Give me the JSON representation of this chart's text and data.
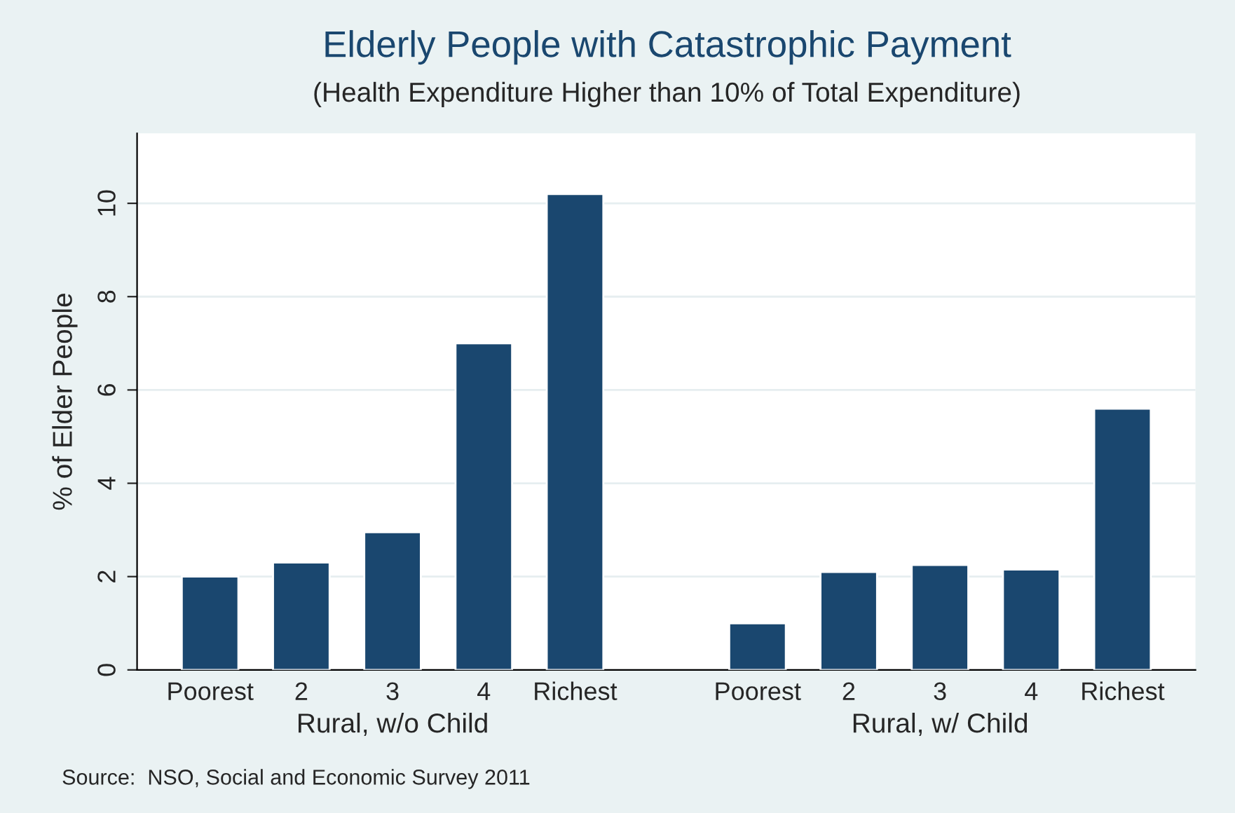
{
  "chart_data": {
    "type": "bar",
    "title": "Elderly People with Catastrophic Payment",
    "subtitle": "(Health Expenditure Higher than 10% of Total Expenditure)",
    "ylabel": "% of Elder People",
    "categories": [
      "Poorest",
      "2",
      "3",
      "4",
      "Richest",
      null,
      "Poorest",
      "2",
      "3",
      "4",
      "Richest"
    ],
    "values": [
      2.0,
      2.3,
      2.95,
      7.0,
      10.2,
      null,
      1.0,
      2.1,
      2.25,
      2.15,
      5.6
    ],
    "color": "#1a476f",
    "ylim": [
      0,
      11.5
    ],
    "yticks": [
      0,
      2,
      4,
      6,
      8,
      10
    ],
    "grid": "y",
    "legend": false,
    "annotations": [
      "Rural, w/o Child",
      "Rural, w/ Child",
      "Source:  NSO, Social and Economic Survey 2011"
    ]
  }
}
